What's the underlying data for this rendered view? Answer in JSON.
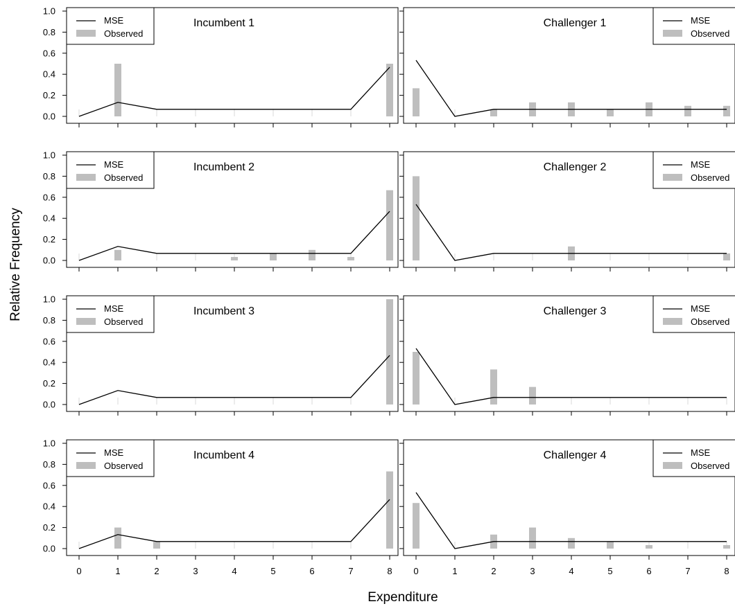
{
  "chart_data": {
    "type": "bar",
    "layout": "4 rows x 2 columns small multiples",
    "xlabel": "Expenditure",
    "ylabel": "Relative Frequency",
    "x": [
      0,
      1,
      2,
      3,
      4,
      5,
      6,
      7,
      8
    ],
    "ylim": [
      0,
      1
    ],
    "yticks": [
      "0.0",
      "0.2",
      "0.4",
      "0.6",
      "0.8",
      "1.0"
    ],
    "legend": {
      "line_label": "MSE",
      "bar_label": "Observed"
    },
    "series_colors": {
      "mse": "#000000",
      "observed": "#bebebe"
    },
    "panels": [
      {
        "title": "Incumbent 1",
        "column": "left",
        "row": 1,
        "legend_position": "top-left",
        "mse": [
          0,
          0.133,
          0.067,
          0.067,
          0.067,
          0.067,
          0.067,
          0.067,
          0.467
        ],
        "observed": [
          0,
          0.5,
          0,
          0,
          0,
          0,
          0,
          0,
          0.5
        ]
      },
      {
        "title": "Challenger 1",
        "column": "right",
        "row": 1,
        "legend_position": "top-right",
        "mse": [
          0.533,
          0,
          0.067,
          0.067,
          0.067,
          0.067,
          0.067,
          0.067,
          0.067
        ],
        "observed": [
          0.267,
          0,
          0.067,
          0.133,
          0.133,
          0.067,
          0.133,
          0.1,
          0.1
        ]
      },
      {
        "title": "Incumbent 2",
        "column": "left",
        "row": 2,
        "legend_position": "top-left",
        "mse": [
          0,
          0.133,
          0.067,
          0.067,
          0.067,
          0.067,
          0.067,
          0.067,
          0.467
        ],
        "observed": [
          0,
          0.1,
          0,
          0,
          0.033,
          0.067,
          0.1,
          0.033,
          0.667
        ]
      },
      {
        "title": "Challenger 2",
        "column": "right",
        "row": 2,
        "legend_position": "top-right",
        "mse": [
          0.533,
          0,
          0.067,
          0.067,
          0.067,
          0.067,
          0.067,
          0.067,
          0.067
        ],
        "observed": [
          0.8,
          0,
          0,
          0,
          0.133,
          0,
          0,
          0,
          0.067
        ]
      },
      {
        "title": "Incumbent 3",
        "column": "left",
        "row": 3,
        "legend_position": "top-left",
        "mse": [
          0,
          0.133,
          0.067,
          0.067,
          0.067,
          0.067,
          0.067,
          0.067,
          0.467
        ],
        "observed": [
          0,
          0,
          0,
          0,
          0,
          0,
          0,
          0,
          1.0
        ]
      },
      {
        "title": "Challenger 3",
        "column": "right",
        "row": 3,
        "legend_position": "top-right",
        "mse": [
          0.533,
          0,
          0.067,
          0.067,
          0.067,
          0.067,
          0.067,
          0.067,
          0.067
        ],
        "observed": [
          0.5,
          0,
          0.333,
          0.167,
          0,
          0,
          0,
          0,
          0
        ]
      },
      {
        "title": "Incumbent 4",
        "column": "left",
        "row": 4,
        "legend_position": "top-left",
        "mse": [
          0,
          0.133,
          0.067,
          0.067,
          0.067,
          0.067,
          0.067,
          0.067,
          0.467
        ],
        "observed": [
          0,
          0.2,
          0.067,
          0,
          0,
          0,
          0,
          0,
          0.733
        ]
      },
      {
        "title": "Challenger 4",
        "column": "right",
        "row": 4,
        "legend_position": "top-right",
        "mse": [
          0.533,
          0,
          0.067,
          0.067,
          0.067,
          0.067,
          0.067,
          0.067,
          0.067
        ],
        "observed": [
          0.433,
          0,
          0.133,
          0.2,
          0.1,
          0.067,
          0.033,
          0,
          0.033
        ]
      }
    ]
  }
}
